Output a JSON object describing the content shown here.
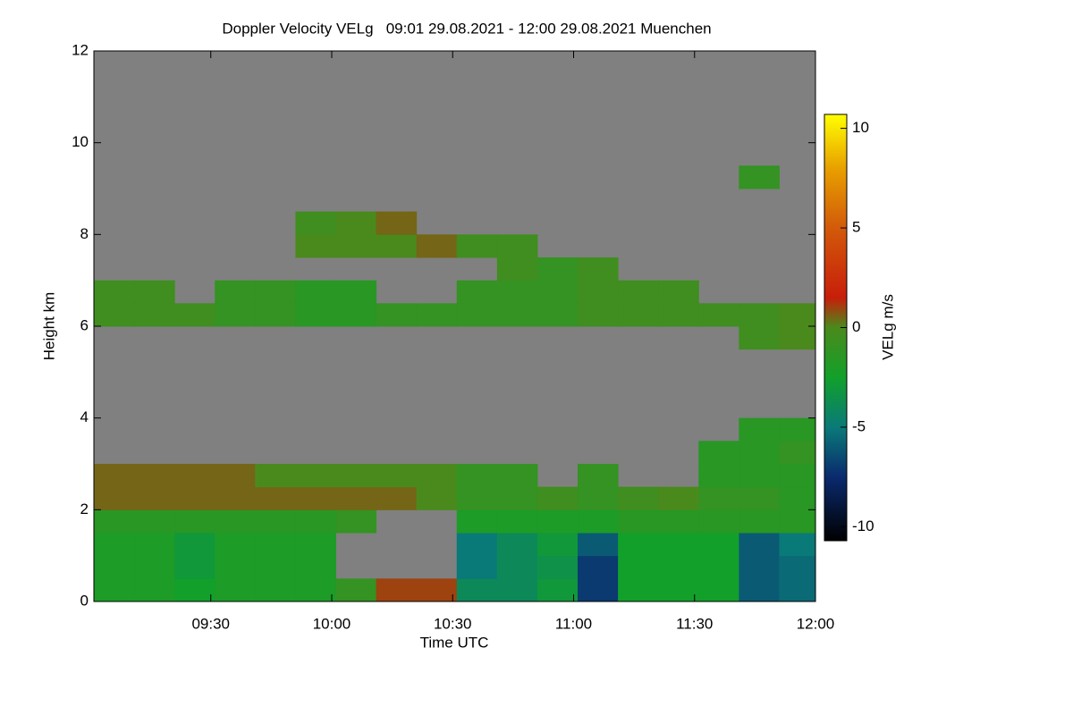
{
  "chart_data": {
    "type": "heatmap",
    "title": "Doppler Velocity VELg   09:01 29.08.2021 - 12:00 29.08.2021 Muenchen",
    "x_label": "Time UTC",
    "y_label": "Height km",
    "colorbar_label": "VELg m/s",
    "xlim": [
      541,
      720
    ],
    "xticks": [
      {
        "value": 570,
        "label": "09:30"
      },
      {
        "value": 600,
        "label": "10:00"
      },
      {
        "value": 630,
        "label": "10:30"
      },
      {
        "value": 660,
        "label": "11:00"
      },
      {
        "value": 690,
        "label": "11:30"
      },
      {
        "value": 720,
        "label": "12:00"
      }
    ],
    "ylim": [
      0,
      12
    ],
    "yticks": [
      0,
      2,
      4,
      6,
      8,
      10,
      12
    ],
    "clim": [
      -10.7,
      10.7
    ],
    "cticks": [
      -10,
      -5,
      0,
      5,
      10
    ],
    "colorscale": [
      [
        -10.7,
        "#000000"
      ],
      [
        -7.5,
        "#0a2a6e"
      ],
      [
        -5,
        "#0a7a78"
      ],
      [
        -2.5,
        "#12a02a"
      ],
      [
        0,
        "#4a8a1c"
      ],
      [
        1.5,
        "#c81e0a"
      ],
      [
        5,
        "#d25a0a"
      ],
      [
        8,
        "#e8a000"
      ],
      [
        10.7,
        "#ffff00"
      ]
    ],
    "missing_color": "#808080",
    "x": [
      541,
      551,
      561,
      571,
      581,
      591,
      601,
      611,
      621,
      631,
      641,
      651,
      661,
      671,
      681,
      691,
      701,
      711,
      720
    ],
    "y": [
      0,
      0.5,
      1,
      1.5,
      2,
      2.5,
      3,
      3.5,
      4,
      4.5,
      5,
      5.5,
      6,
      6.5,
      7,
      7.5,
      8,
      8.5,
      9,
      9.5
    ],
    "z": [
      [
        -2,
        -2,
        -2.5,
        -2,
        -2,
        -2,
        -1,
        1,
        1,
        -4,
        -4,
        -3,
        -7,
        -2.5,
        -2.5,
        -2.5,
        -6,
        -5.5
      ],
      [
        -2,
        -2,
        -3,
        -2,
        -2,
        -2,
        null,
        null,
        null,
        -5,
        -4,
        -3.5,
        -7,
        -2.5,
        -2.5,
        -2.5,
        -6,
        -5.5
      ],
      [
        -2,
        -2,
        -3,
        -2,
        -2,
        -2,
        null,
        null,
        null,
        -5,
        -4,
        -3,
        -6,
        -2.5,
        -2.5,
        -2.5,
        -6,
        -5
      ],
      [
        -1.5,
        -1.5,
        -1.5,
        -1.5,
        -1.5,
        -1.5,
        -1,
        null,
        null,
        -2,
        -2,
        -2,
        -2,
        -1.5,
        -1.5,
        -1.5,
        -1.5,
        -1.5
      ],
      [
        0.5,
        0.5,
        0.5,
        0.5,
        0.5,
        0.5,
        0.5,
        0.5,
        0,
        -1,
        -1,
        -0.5,
        -1,
        -0.5,
        0,
        -1,
        -1,
        -1.5
      ],
      [
        0.5,
        0.5,
        0.5,
        0.5,
        0,
        0,
        0,
        0,
        0,
        -1,
        -1,
        null,
        -1,
        null,
        null,
        -1.5,
        -1.5,
        -1.5
      ],
      [
        null,
        null,
        null,
        null,
        null,
        null,
        null,
        null,
        null,
        null,
        null,
        null,
        null,
        null,
        null,
        -1.5,
        -1.5,
        -1
      ],
      [
        null,
        null,
        null,
        null,
        null,
        null,
        null,
        null,
        null,
        null,
        null,
        null,
        null,
        null,
        null,
        null,
        -1.5,
        -1.5
      ],
      [
        null,
        null,
        null,
        null,
        null,
        null,
        null,
        null,
        null,
        null,
        null,
        null,
        null,
        null,
        null,
        null,
        null,
        null
      ],
      [
        null,
        null,
        null,
        null,
        null,
        null,
        null,
        null,
        null,
        null,
        null,
        null,
        null,
        null,
        null,
        null,
        null,
        null
      ],
      [
        null,
        null,
        null,
        null,
        null,
        null,
        null,
        null,
        null,
        null,
        null,
        null,
        null,
        null,
        null,
        null,
        null,
        null
      ],
      [
        null,
        null,
        null,
        null,
        null,
        null,
        null,
        null,
        null,
        null,
        null,
        null,
        null,
        null,
        null,
        null,
        -0.5,
        0
      ],
      [
        -0.5,
        -0.5,
        -0.5,
        -1,
        -1,
        -1.5,
        -1.5,
        -1,
        -1,
        -1,
        -1,
        -1,
        -0.5,
        -0.5,
        -0.5,
        -0.5,
        -0.5,
        0
      ],
      [
        -0.5,
        -0.5,
        null,
        -1,
        -1,
        -1.5,
        -1.5,
        null,
        null,
        -1,
        -1,
        -1,
        -0.5,
        -0.5,
        -0.5,
        null,
        null,
        null
      ],
      [
        null,
        null,
        null,
        null,
        null,
        null,
        null,
        null,
        null,
        null,
        -0.5,
        -1,
        -0.5,
        null,
        null,
        null,
        null,
        null
      ],
      [
        null,
        null,
        null,
        null,
        null,
        0,
        0,
        0,
        0.5,
        -0.5,
        -0.5,
        null,
        null,
        null,
        null,
        null,
        null,
        null
      ],
      [
        null,
        null,
        null,
        null,
        null,
        -0.5,
        0,
        0.5,
        null,
        null,
        null,
        null,
        null,
        null,
        null,
        null,
        null,
        null
      ],
      [
        null,
        null,
        null,
        null,
        null,
        null,
        null,
        null,
        null,
        null,
        null,
        null,
        null,
        null,
        null,
        null,
        null,
        null
      ],
      [
        null,
        null,
        null,
        null,
        null,
        null,
        null,
        null,
        null,
        null,
        null,
        null,
        null,
        null,
        null,
        null,
        -1,
        null
      ]
    ]
  }
}
